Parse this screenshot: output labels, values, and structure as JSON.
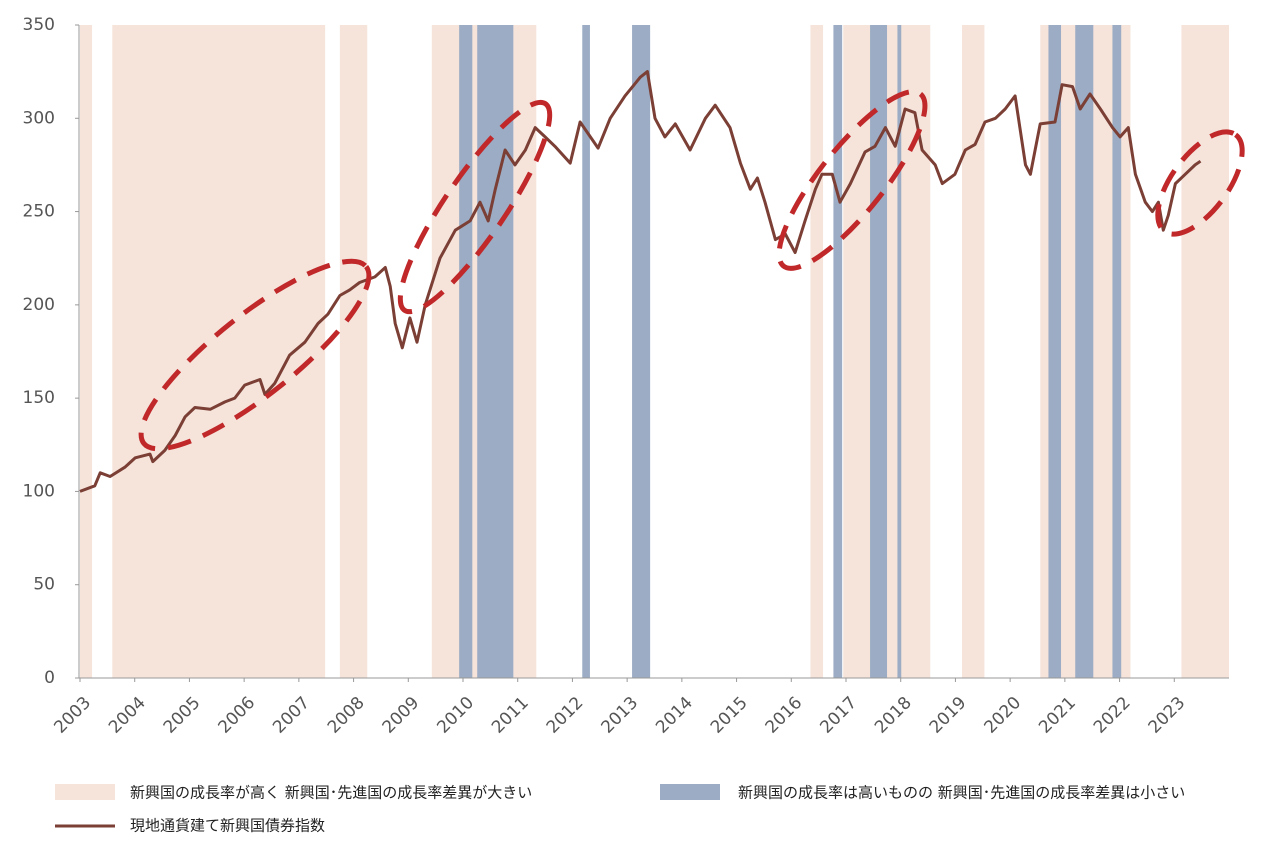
{
  "chart_data": {
    "type": "line",
    "xlim": [
      2003,
      2024
    ],
    "xticks": [
      2003,
      2004,
      2005,
      2006,
      2007,
      2008,
      2009,
      2010,
      2011,
      2012,
      2013,
      2014,
      2015,
      2016,
      2017,
      2018,
      2019,
      2020,
      2021,
      2022,
      2023
    ],
    "ylim": [
      0,
      350
    ],
    "yticks": [
      0,
      50,
      100,
      150,
      200,
      250,
      300,
      350
    ],
    "regions": [
      {
        "name": "新興国の成長率が高く 新興国･先進国の成長率差異が大きい",
        "color": "#f6e4db",
        "spans": [
          [
            2003.0,
            2003.22
          ],
          [
            2003.59,
            2007.48
          ],
          [
            2007.75,
            2008.25
          ],
          [
            2009.43,
            2011.34
          ],
          [
            2016.35,
            2016.58
          ],
          [
            2016.95,
            2018.54
          ],
          [
            2019.12,
            2019.53
          ],
          [
            2020.55,
            2022.2
          ],
          [
            2023.13,
            2024.0
          ]
        ]
      },
      {
        "name": "新興国の成長率は高いものの 新興国･先進国の成長率差異は小さい",
        "color": "#9bacc4",
        "spans": [
          [
            2009.93,
            2010.17
          ],
          [
            2010.26,
            2010.92
          ],
          [
            2012.18,
            2012.32
          ],
          [
            2013.09,
            2013.42
          ],
          [
            2016.77,
            2016.93
          ],
          [
            2017.44,
            2017.75
          ],
          [
            2017.94,
            2018.01
          ],
          [
            2020.7,
            2020.93
          ],
          [
            2021.19,
            2021.52
          ],
          [
            2021.87,
            2022.03
          ]
        ]
      }
    ],
    "series": [
      {
        "name": "現地通貨建て新興国債券指数",
        "color": "#7b3f35",
        "x": [
          2003.0,
          2003.27,
          2003.37,
          2003.55,
          2003.82,
          2004.01,
          2004.28,
          2004.33,
          2004.55,
          2004.74,
          2004.92,
          2005.1,
          2005.38,
          2005.65,
          2005.83,
          2006.01,
          2006.29,
          2006.38,
          2006.56,
          2006.83,
          2007.11,
          2007.35,
          2007.53,
          2007.75,
          2007.93,
          2008.11,
          2008.39,
          2008.58,
          2008.67,
          2008.76,
          2008.89,
          2009.03,
          2009.16,
          2009.31,
          2009.58,
          2009.86,
          2010.13,
          2010.31,
          2010.46,
          2010.59,
          2010.77,
          2010.95,
          2011.14,
          2011.32,
          2011.5,
          2011.68,
          2011.96,
          2012.14,
          2012.47,
          2012.69,
          2012.96,
          2013.24,
          2013.37,
          2013.51,
          2013.69,
          2013.88,
          2014.15,
          2014.43,
          2014.61,
          2014.88,
          2015.07,
          2015.25,
          2015.38,
          2015.52,
          2015.71,
          2015.89,
          2016.07,
          2016.25,
          2016.44,
          2016.56,
          2016.75,
          2016.89,
          2017.08,
          2017.35,
          2017.53,
          2017.72,
          2017.9,
          2018.08,
          2018.26,
          2018.39,
          2018.63,
          2018.76,
          2018.99,
          2019.18,
          2019.36,
          2019.54,
          2019.73,
          2019.91,
          2020.09,
          2020.28,
          2020.37,
          2020.55,
          2020.82,
          2020.95,
          2021.14,
          2021.28,
          2021.46,
          2021.65,
          2021.87,
          2022.01,
          2022.16,
          2022.29,
          2022.47,
          2022.6,
          2022.71,
          2022.8,
          2022.89,
          2023.02,
          2023.2,
          2023.38,
          2023.48
        ],
        "values": [
          100,
          103,
          110,
          108,
          113,
          118,
          120,
          116,
          122,
          130,
          140,
          145,
          144,
          148,
          150,
          157,
          160,
          152,
          158,
          173,
          180,
          190,
          195,
          205,
          208,
          212,
          215,
          220,
          210,
          190,
          177,
          193,
          180,
          200,
          225,
          240,
          245,
          255,
          245,
          262,
          283,
          275,
          283,
          295,
          290,
          285,
          276,
          298,
          284,
          300,
          312,
          322,
          325,
          300,
          290,
          297,
          283,
          300,
          307,
          295,
          276,
          262,
          268,
          255,
          235,
          238,
          228,
          245,
          262,
          270,
          270,
          255,
          265,
          282,
          285,
          295,
          285,
          305,
          303,
          283,
          275,
          265,
          270,
          283,
          286,
          298,
          300,
          305,
          312,
          275,
          270,
          297,
          298,
          318,
          317,
          305,
          313,
          305,
          295,
          290,
          295,
          270,
          255,
          250,
          255,
          240,
          248,
          265,
          270,
          275,
          277
        ]
      }
    ]
  }
}
